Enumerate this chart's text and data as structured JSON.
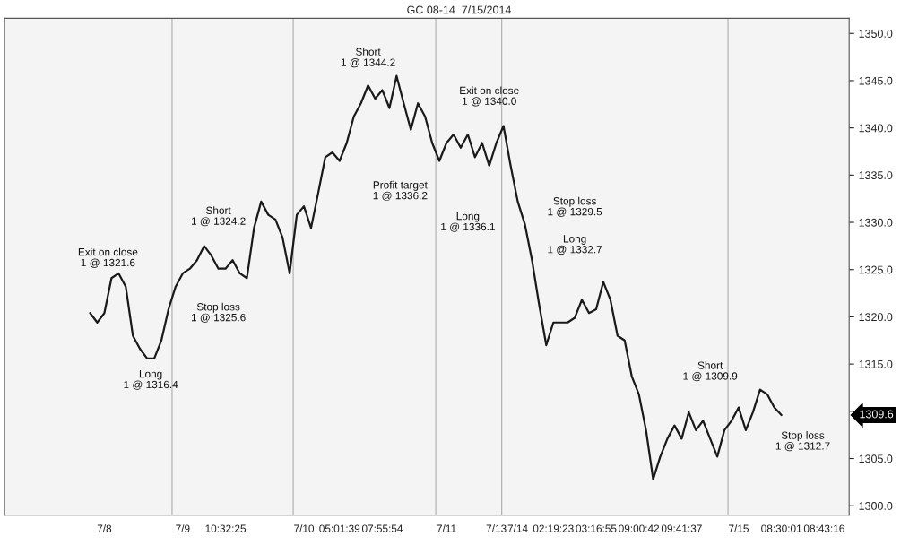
{
  "chart_data": {
    "type": "line",
    "title": "GC 08-14  7/15/2014",
    "categories": [
      null,
      null,
      "7/8",
      null,
      null,
      null,
      null,
      null,
      null,
      null,
      null,
      null,
      null,
      "7/9",
      null,
      null,
      null,
      null,
      null,
      "10:32:25",
      null,
      null,
      null,
      null,
      null,
      null,
      null,
      null,
      null,
      null,
      "7/10",
      null,
      null,
      null,
      null,
      "05:01:39",
      null,
      null,
      null,
      null,
      null,
      "07:55:54",
      null,
      null,
      null,
      null,
      null,
      null,
      null,
      null,
      "7/11",
      null,
      null,
      null,
      null,
      null,
      null,
      "7/13",
      null,
      null,
      "7/14",
      null,
      null,
      null,
      null,
      "02:19:23",
      null,
      null,
      null,
      null,
      null,
      "03:16:55",
      null,
      null,
      null,
      null,
      null,
      "09:00:42",
      null,
      null,
      null,
      null,
      null,
      "09:41:37",
      null,
      null,
      null,
      null,
      null,
      null,
      null,
      "7/15",
      null,
      null,
      null,
      null,
      null,
      "08:30:01",
      null,
      null,
      null,
      null,
      null,
      "08:43:16",
      null,
      null
    ],
    "series": [
      {
        "color": "#1a1a1a",
        "values": [
          1320.4,
          1319.4,
          1320.4,
          1324.1,
          1324.6,
          1323.2,
          1318.0,
          1316.6,
          1315.6,
          1315.6,
          1317.5,
          1320.8,
          1323.2,
          1324.6,
          1325.1,
          1326.0,
          1327.5,
          1326.5,
          1325.1,
          1325.1,
          1326.0,
          1324.6,
          1324.1,
          1329.4,
          1332.2,
          1330.8,
          1330.3,
          1328.4,
          1324.6,
          1330.8,
          1331.7,
          1329.4,
          1333.1,
          1336.9,
          1337.4,
          1336.5,
          1338.4,
          1341.2,
          1342.6,
          1344.5,
          1343.1,
          1344.0,
          1342.1,
          1345.5,
          1342.6,
          1339.8,
          1342.6,
          1341.2,
          1338.4,
          1336.5,
          1338.4,
          1339.3,
          1337.9,
          1339.3,
          1336.9,
          1338.4,
          1336.0,
          1338.4,
          1340.2,
          1336.0,
          1332.2,
          1329.8,
          1326.0,
          1321.3,
          1317.0,
          1319.4,
          1319.4,
          1319.4,
          1319.9,
          1321.8,
          1320.4,
          1320.8,
          1323.7,
          1321.8,
          1318.0,
          1317.5,
          1313.7,
          1311.8,
          1308.0,
          1302.8,
          1305.2,
          1307.1,
          1308.5,
          1307.1,
          1309.9,
          1308.0,
          1309.0,
          1307.1,
          1305.2,
          1308.0,
          1309.0,
          1310.4,
          1308.0,
          1309.9,
          1312.3,
          1311.8,
          1310.4,
          1309.6,
          null,
          null,
          null,
          null,
          null,
          null,
          null,
          null
        ]
      }
    ],
    "ylim": [
      1299,
      1351.6
    ],
    "yticks": [
      {
        "value": 1300,
        "label": "1300.0"
      },
      {
        "value": 1305,
        "label": "1305.0"
      },
      {
        "value": 1310,
        "label": null
      },
      {
        "value": 1315,
        "label": "1315.0"
      },
      {
        "value": 1320,
        "label": "1320.0"
      },
      {
        "value": 1325,
        "label": "1325.0"
      },
      {
        "value": 1330,
        "label": "1330.0"
      },
      {
        "value": 1335,
        "label": "1335.0"
      },
      {
        "value": 1340,
        "label": "1340.0"
      },
      {
        "value": 1345,
        "label": "1345.0"
      },
      {
        "value": 1350,
        "label": "1350.0"
      }
    ],
    "annotations": [
      "Long\n1 @ 1316.4",
      "Exit on close\n1 @ 1321.6",
      "Short\n1 @ 1324.2",
      "Stop loss\n1 @ 1325.6",
      "Short\n1 @ 1344.2",
      "Profit target\n1 @ 1336.2",
      "Long\n1 @ 1336.1",
      "Exit on close\n1 @ 1340.0",
      "Stop loss\n1 @ 1329.5",
      "Long\n1 @ 1332.7",
      "Short\n1 @ 1309.9",
      "Stop loss\n1 @ 1312.7",
      "1309.6"
    ],
    "grid": false,
    "legend": false
  }
}
